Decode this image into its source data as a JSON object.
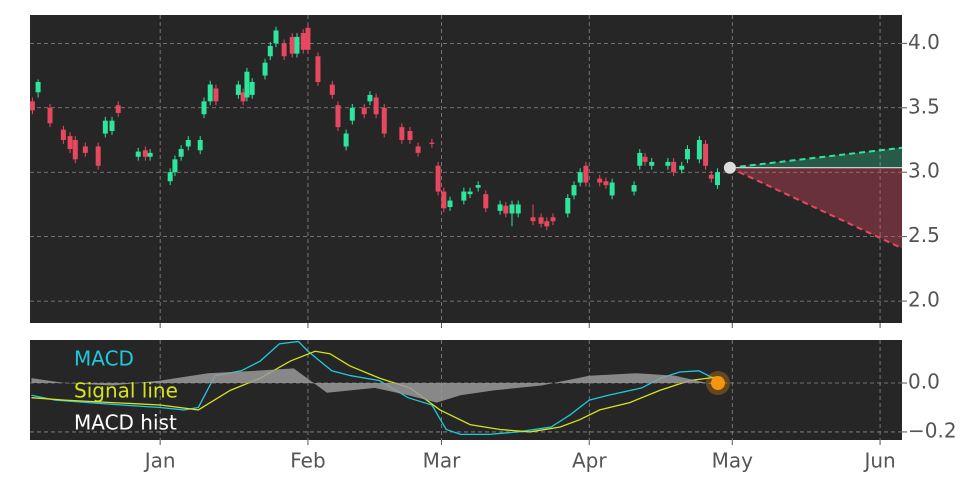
{
  "chart_data": [
    {
      "type": "candlestick",
      "xlim": [
        -27.3,
        155.6
      ],
      "xticks": [
        0,
        31,
        59,
        90,
        120,
        151
      ],
      "ylim": [
        1.83,
        4.22
      ],
      "yticks": [
        {
          "value": 2,
          "label": "2.0"
        },
        2.5,
        {
          "value": 3,
          "label": "3.0"
        },
        3.5,
        {
          "value": 4,
          "label": "4.0"
        }
      ],
      "grid": true,
      "up_color": "#2ee59d",
      "down_color": "#e8485f",
      "candles": [
        [
          -26.8,
          3.55,
          3.58,
          3.45,
          3.48
        ],
        [
          -25.6,
          3.62,
          3.72,
          3.58,
          3.7
        ],
        [
          -23.1,
          3.5,
          3.53,
          3.35,
          3.38
        ],
        [
          -20.3,
          3.33,
          3.36,
          3.22,
          3.25
        ],
        [
          -18.9,
          3.28,
          3.31,
          3.15,
          3.18
        ],
        [
          -17.8,
          3.25,
          3.28,
          3.07,
          3.1
        ],
        [
          -15.7,
          3.2,
          3.23,
          3.12,
          3.15
        ],
        [
          -13.0,
          3.2,
          3.23,
          3.02,
          3.05
        ],
        [
          -11.5,
          3.3,
          3.43,
          3.27,
          3.4
        ],
        [
          -10.1,
          3.32,
          3.43,
          3.29,
          3.4
        ],
        [
          -8.8,
          3.52,
          3.55,
          3.43,
          3.46
        ],
        [
          -4.6,
          3.12,
          3.19,
          3.09,
          3.16
        ],
        [
          -3.1,
          3.17,
          3.2,
          3.09,
          3.12
        ],
        [
          -2.1,
          3.12,
          3.18,
          3.09,
          3.15
        ],
        [
          2.1,
          2.93,
          3.03,
          2.9,
          3.0
        ],
        [
          3.1,
          3.0,
          3.13,
          2.97,
          3.1
        ],
        [
          4.4,
          3.12,
          3.21,
          3.09,
          3.18
        ],
        [
          5.9,
          3.2,
          3.28,
          3.17,
          3.25
        ],
        [
          8.4,
          3.17,
          3.28,
          3.14,
          3.25
        ],
        [
          9.2,
          3.45,
          3.58,
          3.42,
          3.55
        ],
        [
          10.5,
          3.55,
          3.71,
          3.52,
          3.68
        ],
        [
          11.7,
          3.65,
          3.68,
          3.52,
          3.55
        ],
        [
          16.4,
          3.6,
          3.71,
          3.57,
          3.68
        ],
        [
          17.4,
          3.62,
          3.65,
          3.52,
          3.55
        ],
        [
          18.2,
          3.58,
          3.81,
          3.55,
          3.78
        ],
        [
          19.3,
          3.6,
          3.73,
          3.57,
          3.7
        ],
        [
          22.0,
          3.75,
          3.88,
          3.72,
          3.85
        ],
        [
          23.1,
          3.9,
          4.01,
          3.87,
          3.98
        ],
        [
          24.3,
          4.0,
          4.13,
          3.97,
          4.1
        ],
        [
          26.0,
          4.0,
          4.03,
          3.87,
          3.9
        ],
        [
          27.7,
          4.05,
          4.08,
          3.89,
          3.92
        ],
        [
          28.7,
          3.92,
          4.08,
          3.89,
          4.05
        ],
        [
          30.0,
          4.08,
          4.11,
          3.92,
          3.95
        ],
        [
          31.0,
          4.12,
          4.15,
          3.92,
          3.95
        ],
        [
          33.1,
          3.9,
          3.93,
          3.67,
          3.7
        ],
        [
          36.1,
          3.68,
          3.71,
          3.57,
          3.6
        ],
        [
          37.3,
          3.52,
          3.55,
          3.32,
          3.35
        ],
        [
          39.0,
          3.2,
          3.33,
          3.17,
          3.3
        ],
        [
          40.3,
          3.4,
          3.53,
          3.37,
          3.5
        ],
        [
          42.8,
          3.5,
          3.53,
          3.42,
          3.45
        ],
        [
          44.0,
          3.55,
          3.63,
          3.52,
          3.6
        ],
        [
          45.3,
          3.58,
          3.61,
          3.42,
          3.45
        ],
        [
          47.0,
          3.5,
          3.53,
          3.27,
          3.3
        ],
        [
          50.7,
          3.35,
          3.38,
          3.22,
          3.25
        ],
        [
          52.4,
          3.32,
          3.35,
          3.22,
          3.25
        ],
        [
          54.1,
          3.2,
          3.23,
          3.12,
          3.15
        ],
        [
          57.0,
          3.23,
          3.26,
          3.19,
          3.22
        ],
        [
          58.3,
          3.05,
          3.08,
          2.82,
          2.85
        ],
        [
          59.5,
          2.85,
          2.88,
          2.69,
          2.72
        ],
        [
          60.8,
          2.73,
          2.81,
          2.7,
          2.78
        ],
        [
          63.7,
          2.78,
          2.88,
          2.75,
          2.85
        ],
        [
          65.0,
          2.83,
          2.88,
          2.8,
          2.85
        ],
        [
          66.7,
          2.88,
          2.93,
          2.85,
          2.9
        ],
        [
          68.3,
          2.83,
          2.86,
          2.69,
          2.72
        ],
        [
          71.3,
          2.7,
          2.78,
          2.67,
          2.75
        ],
        [
          72.5,
          2.74,
          2.77,
          2.65,
          2.68
        ],
        [
          73.8,
          2.68,
          2.78,
          2.58,
          2.75
        ],
        [
          75.1,
          2.68,
          2.78,
          2.65,
          2.75
        ],
        [
          78.2,
          2.65,
          2.75,
          2.59,
          2.62
        ],
        [
          79.9,
          2.65,
          2.68,
          2.57,
          2.6
        ],
        [
          81.1,
          2.62,
          2.65,
          2.55,
          2.58
        ],
        [
          82.4,
          2.65,
          2.68,
          2.59,
          2.62
        ],
        [
          85.5,
          2.68,
          2.83,
          2.65,
          2.8
        ],
        [
          86.8,
          2.82,
          2.93,
          2.79,
          2.9
        ],
        [
          88.1,
          2.92,
          3.03,
          2.89,
          3.0
        ],
        [
          89.3,
          3.05,
          3.08,
          2.89,
          2.92
        ],
        [
          92.2,
          2.95,
          2.98,
          2.89,
          2.92
        ],
        [
          93.5,
          2.93,
          2.96,
          2.87,
          2.9
        ],
        [
          94.8,
          2.82,
          2.95,
          2.79,
          2.92
        ],
        [
          99.4,
          2.85,
          2.93,
          2.82,
          2.9
        ],
        [
          100.6,
          3.05,
          3.18,
          3.02,
          3.15
        ],
        [
          101.7,
          3.12,
          3.15,
          3.05,
          3.08
        ],
        [
          103.1,
          3.05,
          3.11,
          3.02,
          3.08
        ],
        [
          106.5,
          3.05,
          3.11,
          3.02,
          3.08
        ],
        [
          107.7,
          3.08,
          3.11,
          2.97,
          3.0
        ],
        [
          109.4,
          3.02,
          3.08,
          2.99,
          3.05
        ],
        [
          110.6,
          3.1,
          3.21,
          3.07,
          3.18
        ],
        [
          113.1,
          3.1,
          3.28,
          3.07,
          3.25
        ],
        [
          114.4,
          3.22,
          3.25,
          3.02,
          3.05
        ],
        [
          115.6,
          2.98,
          3.01,
          2.92,
          2.95
        ],
        [
          116.9,
          2.9,
          3.03,
          2.87,
          3.0
        ]
      ],
      "forecast": {
        "x": [
          119.5,
          155.6
        ],
        "base": 3.035,
        "upper": 3.19,
        "lower": 2.41,
        "dot_color": "#dddddd"
      }
    },
    {
      "type": "line",
      "xlim": [
        -27.3,
        155.6
      ],
      "xticks": [
        {
          "value": 0,
          "label": "Jan"
        },
        {
          "value": 31,
          "label": "Feb"
        },
        {
          "value": 59,
          "label": "Mar"
        },
        {
          "value": 90,
          "label": "Apr"
        },
        {
          "value": 120,
          "label": "May"
        },
        {
          "value": 151,
          "label": "Jun"
        }
      ],
      "ylim": [
        -0.233,
        0.176
      ],
      "yticks": [
        {
          "value": -0.2,
          "label": "−0.2"
        },
        {
          "value": 0,
          "label": "0.0"
        }
      ],
      "grid": true,
      "legend": "upper left",
      "series": [
        {
          "name": "MACD",
          "color": "#1fc8dc",
          "x": [
            -27,
            -22,
            -15,
            -8,
            0,
            5,
            8,
            11.5,
            17,
            21,
            25,
            29,
            31,
            36,
            40,
            46,
            52,
            57,
            60,
            63,
            69,
            75,
            82,
            86,
            90,
            94,
            101,
            105,
            109,
            113,
            117
          ],
          "values": [
            -0.05,
            -0.07,
            -0.08,
            -0.09,
            -0.1,
            -0.11,
            -0.1,
            0.03,
            0.05,
            0.09,
            0.16,
            0.17,
            0.13,
            0.05,
            0.03,
            0.01,
            -0.06,
            -0.09,
            -0.19,
            -0.21,
            -0.21,
            -0.2,
            -0.18,
            -0.13,
            -0.07,
            -0.05,
            -0.02,
            0.02,
            0.045,
            0.05,
            0.01
          ]
        },
        {
          "name": "Signal line",
          "color": "#d8e21e",
          "x": [
            -27,
            -20,
            -10,
            0,
            8,
            14.7,
            21,
            27.3,
            32.5,
            35.6,
            39.8,
            46,
            52.4,
            58.7,
            65,
            71.3,
            77.6,
            83.9,
            88,
            92.2,
            98.5,
            104.8,
            111,
            116.9
          ],
          "values": [
            -0.06,
            -0.07,
            -0.08,
            -0.09,
            -0.11,
            -0.03,
            0.02,
            0.09,
            0.13,
            0.12,
            0.07,
            0.02,
            -0.02,
            -0.11,
            -0.17,
            -0.19,
            -0.2,
            -0.18,
            -0.15,
            -0.11,
            -0.08,
            -0.03,
            0.01,
            0.025
          ]
        },
        {
          "name": "MACD hist",
          "color": "#ffffff",
          "fill": "#9a9a9a",
          "x": [
            -27,
            -20,
            -10,
            0,
            10,
            20,
            28,
            35,
            45,
            52,
            58,
            63,
            70,
            80,
            90,
            100,
            108,
            117
          ],
          "values": [
            0.02,
            0.0,
            -0.01,
            0.01,
            0.04,
            0.05,
            0.06,
            -0.04,
            -0.02,
            -0.05,
            -0.08,
            -0.05,
            -0.03,
            -0.01,
            0.03,
            0.04,
            0.03,
            -0.01
          ]
        }
      ],
      "marker": {
        "x": 117,
        "y": 0,
        "color": "#f5950c"
      }
    }
  ]
}
